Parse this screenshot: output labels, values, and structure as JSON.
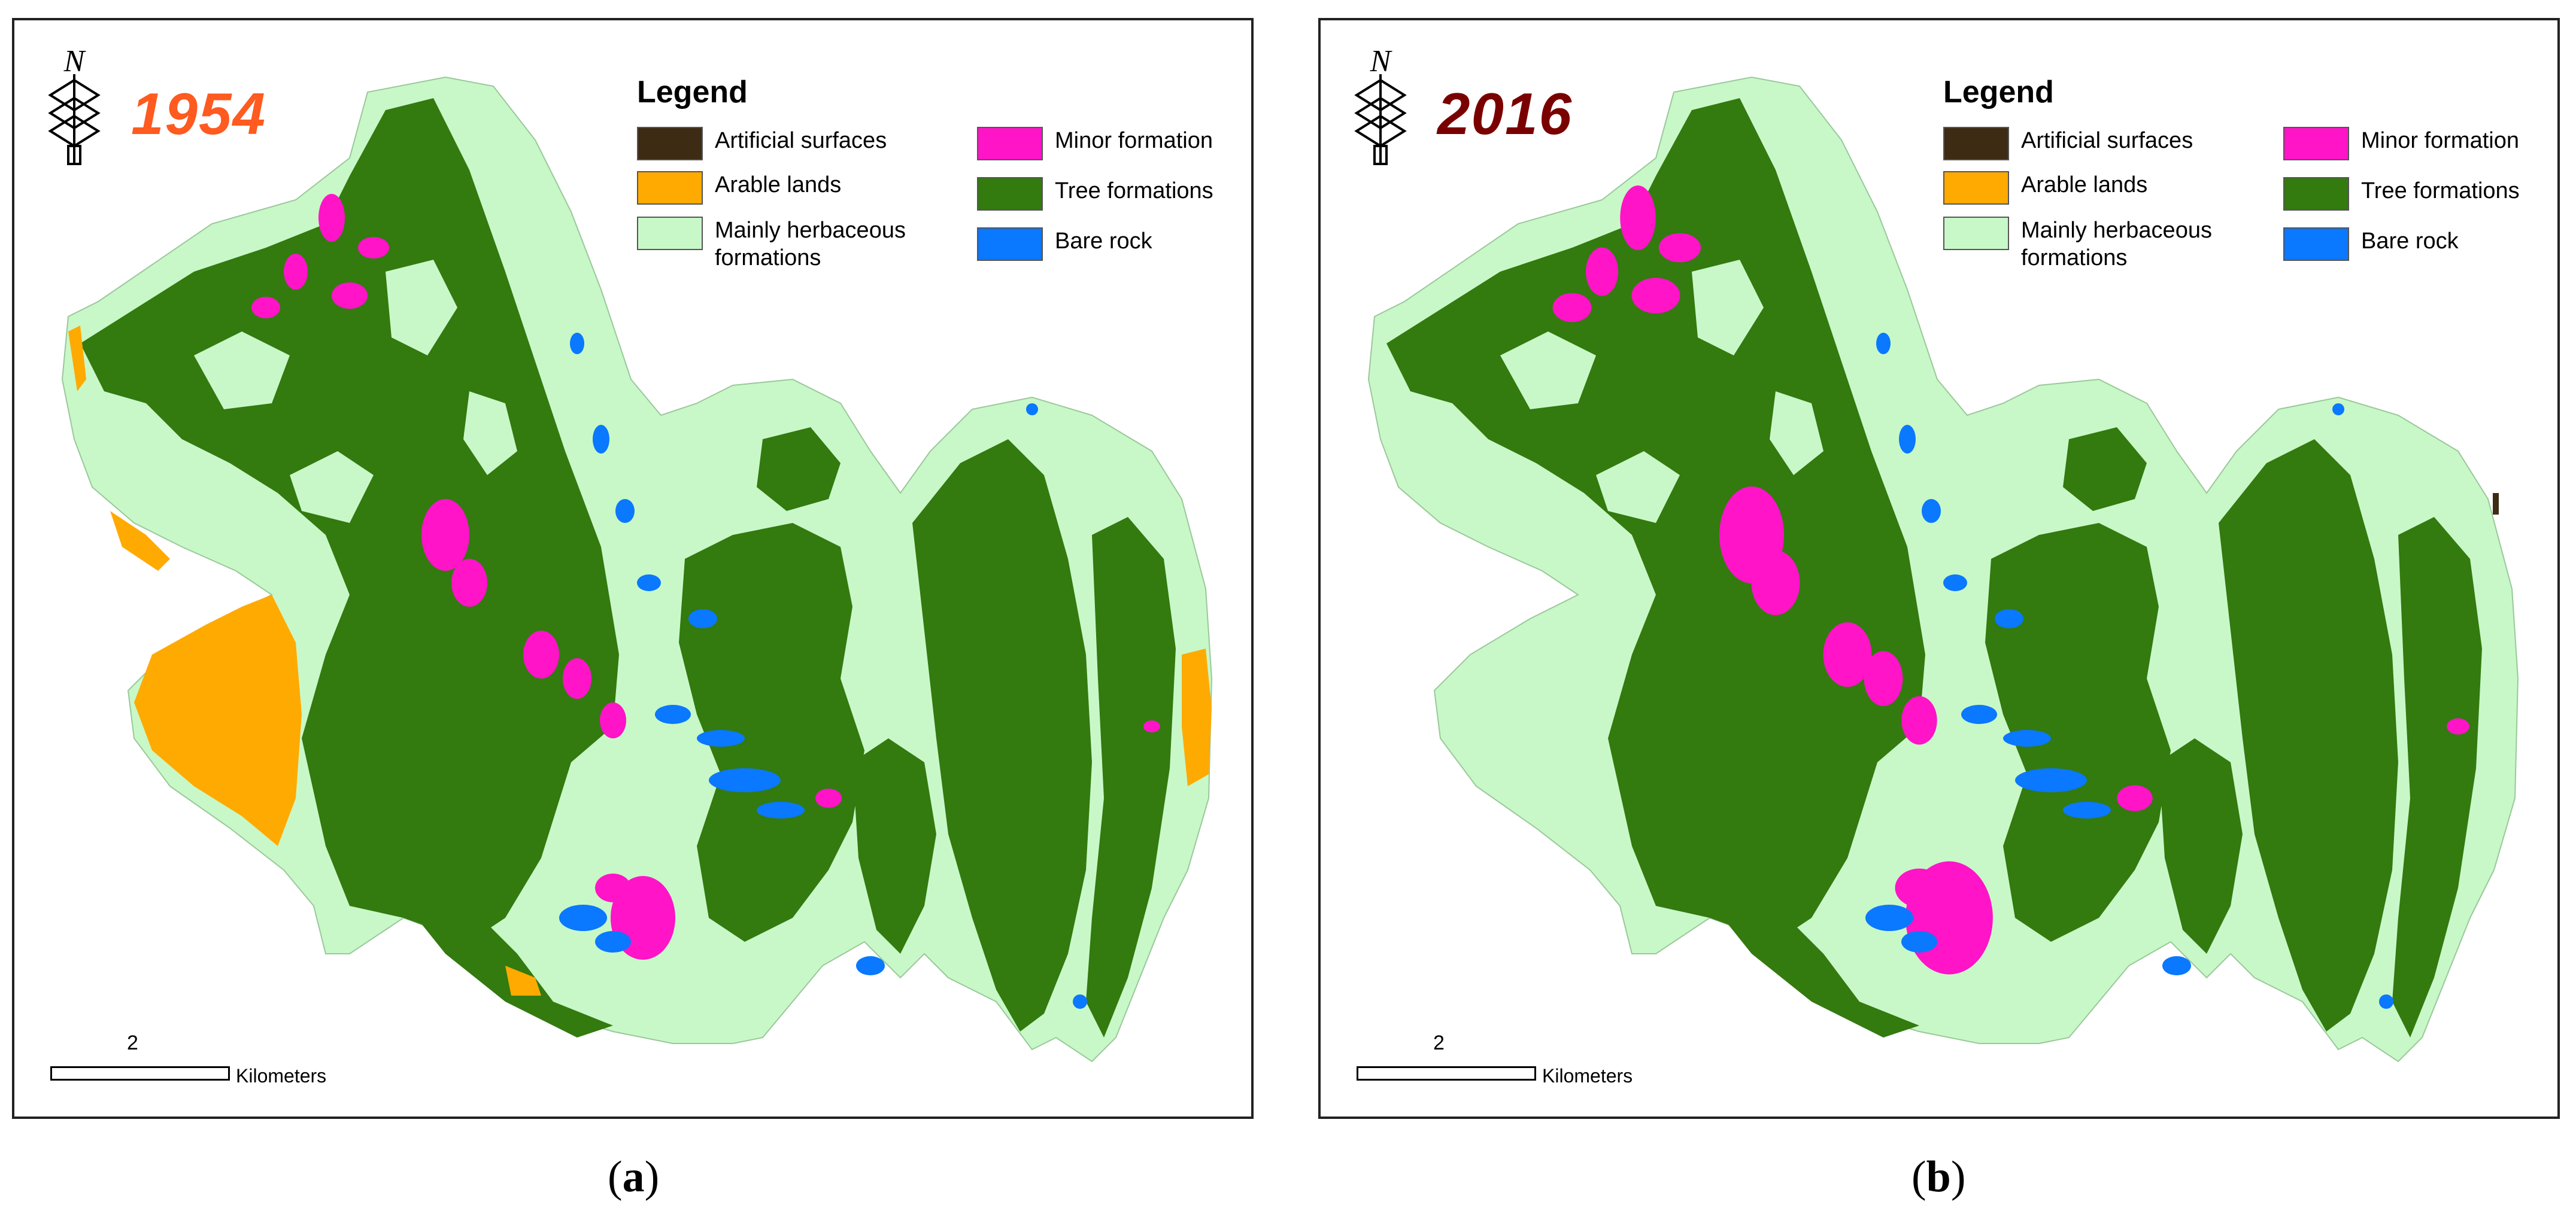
{
  "panels": [
    {
      "year": "1954",
      "year_color": "#ff5a1f",
      "sublabel": {
        "open": "(",
        "letter": "a",
        "close": ")"
      },
      "north_label": "N",
      "legend_title": "Legend",
      "scale": {
        "number": "2",
        "unit": "Kilometers"
      },
      "arable_present": true
    },
    {
      "year": "2016",
      "year_color": "#7a0000",
      "sublabel": {
        "open": "(",
        "letter": "b",
        "close": ")"
      },
      "north_label": "N",
      "legend_title": "Legend",
      "scale": {
        "number": "2",
        "unit": "Kilometers"
      },
      "arable_present": false
    }
  ],
  "legend": [
    {
      "label": "Artificial surfaces",
      "color": "#3d2b14"
    },
    {
      "label": "Arable lands",
      "color": "#ffaa00"
    },
    {
      "label": "Mainly herbaceous formations",
      "color": "#c8f8c8"
    },
    {
      "label": "Minor formation",
      "color": "#ff14c8"
    },
    {
      "label": "Tree formations",
      "color": "#337a0f"
    },
    {
      "label": "Bare rock",
      "color": "#0a78ff"
    }
  ]
}
